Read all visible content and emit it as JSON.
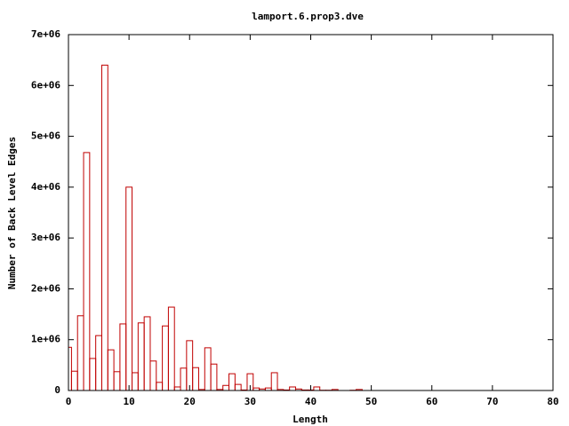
{
  "chart_data": {
    "type": "bar",
    "title": "lamport.6.prop3.dve",
    "xlabel": "Length",
    "ylabel": "Number of Back Level Edges",
    "x": [
      0,
      1,
      2,
      3,
      4,
      5,
      6,
      7,
      8,
      9,
      10,
      11,
      12,
      13,
      14,
      15,
      16,
      17,
      18,
      19,
      20,
      21,
      22,
      23,
      24,
      25,
      26,
      27,
      28,
      29,
      30,
      31,
      32,
      33,
      34,
      35,
      36,
      37,
      38,
      39,
      40,
      41,
      42,
      43,
      44,
      45,
      46,
      47,
      48
    ],
    "values": [
      850000,
      380000,
      1470000,
      4680000,
      630000,
      1080000,
      6400000,
      800000,
      370000,
      1310000,
      4000000,
      350000,
      1330000,
      1450000,
      580000,
      160000,
      1270000,
      1640000,
      70000,
      440000,
      980000,
      450000,
      20000,
      840000,
      520000,
      20000,
      100000,
      330000,
      120000,
      10000,
      330000,
      50000,
      30000,
      50000,
      350000,
      20000,
      10000,
      70000,
      30000,
      10000,
      10000,
      70000,
      5000,
      5000,
      20000,
      0,
      0,
      5000,
      20000
    ],
    "color": "#c00000",
    "xlim": [
      0,
      80
    ],
    "xticks": [
      0,
      10,
      20,
      30,
      40,
      50,
      60,
      70,
      80
    ],
    "ylim": [
      0,
      7000000
    ],
    "yticks": [
      0,
      {
        "value": 1000000,
        "label": "1e+06"
      },
      {
        "value": 2000000,
        "label": "2e+06"
      },
      {
        "value": 3000000,
        "label": "3e+06"
      },
      {
        "value": 4000000,
        "label": "4e+06"
      },
      {
        "value": 5000000,
        "label": "5e+06"
      },
      {
        "value": 6000000,
        "label": "6e+06"
      },
      {
        "value": 7000000,
        "label": "7e+06"
      }
    ]
  }
}
